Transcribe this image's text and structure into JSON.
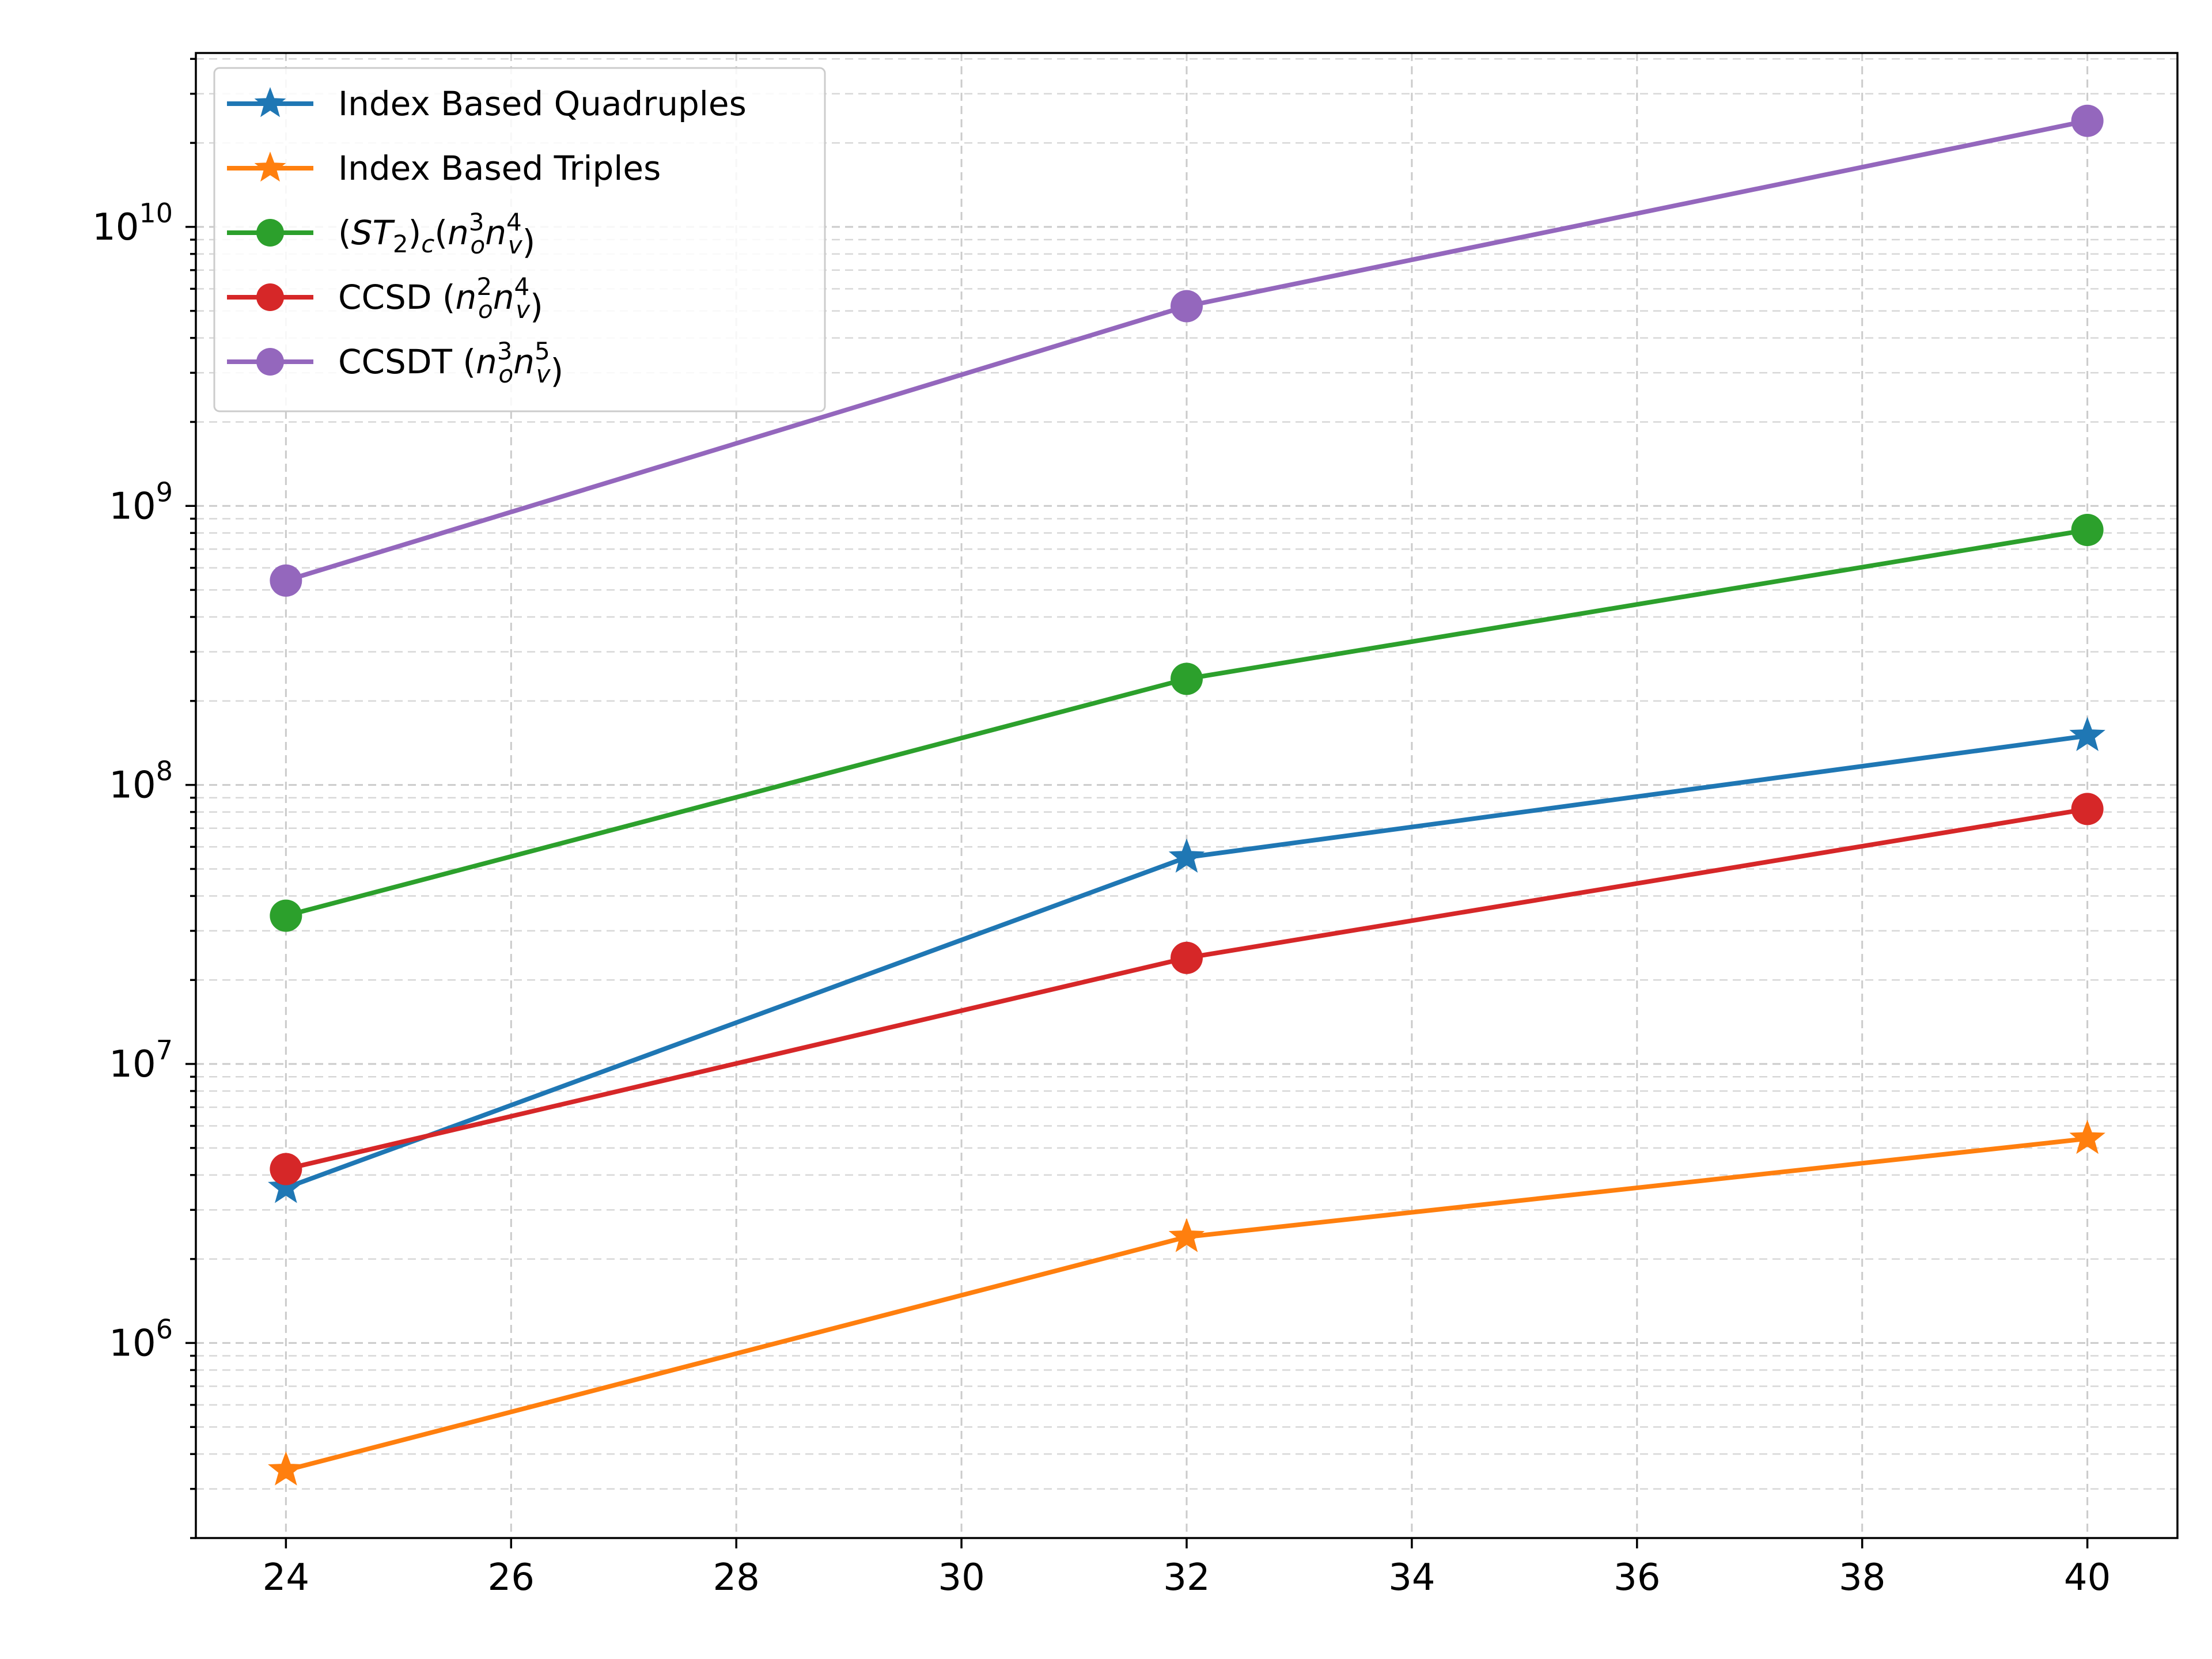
{
  "chart_data": {
    "type": "line",
    "title": "",
    "xlabel": "",
    "ylabel": "",
    "x_scale": "linear",
    "y_scale": "log",
    "xlim": [
      23.2,
      40.8
    ],
    "ylim": [
      200000,
      42000000000
    ],
    "x_ticks": [
      24,
      26,
      28,
      30,
      32,
      34,
      36,
      38,
      40
    ],
    "y_ticks": [
      {
        "value": 1000000,
        "base": "10",
        "exp": "6"
      },
      {
        "value": 10000000,
        "base": "10",
        "exp": "7"
      },
      {
        "value": 100000000,
        "base": "10",
        "exp": "8"
      },
      {
        "value": 1000000000,
        "base": "10",
        "exp": "9"
      },
      {
        "value": 10000000000,
        "base": "10",
        "exp": "10"
      }
    ],
    "grid": true,
    "legend_position": "top-left",
    "series": [
      {
        "name": "Index Based Quadruples",
        "color": "#1f77b4",
        "marker": "star",
        "x": [
          24,
          32,
          40
        ],
        "y": [
          3600000,
          55000000,
          150000000
        ]
      },
      {
        "name": "Index Based Triples",
        "color": "#ff7f0e",
        "marker": "star",
        "x": [
          24,
          32,
          40
        ],
        "y": [
          350000,
          2400000,
          5400000
        ]
      },
      {
        "name": "(ST2)c(no3nv4)",
        "color": "#2ca02c",
        "marker": "circle",
        "x": [
          24,
          32,
          40
        ],
        "y": [
          34000000,
          240000000,
          820000000
        ]
      },
      {
        "name": "CCSD (no2nv4)",
        "color": "#d62728",
        "marker": "circle",
        "x": [
          24,
          32,
          40
        ],
        "y": [
          4200000,
          24000000,
          82000000
        ]
      },
      {
        "name": "CCSDT (no3nv5)",
        "color": "#9467bd",
        "marker": "circle",
        "x": [
          24,
          32,
          40
        ],
        "y": [
          540000000,
          5200000000,
          24000000000
        ]
      }
    ]
  }
}
